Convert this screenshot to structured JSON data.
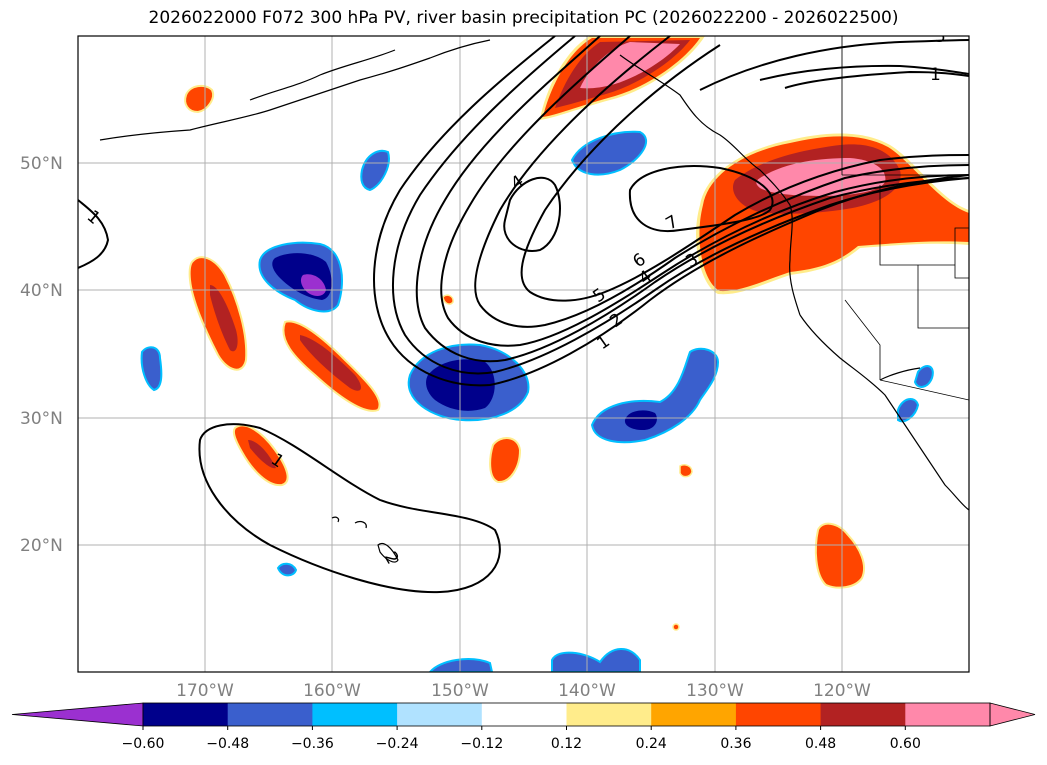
{
  "title": "2026022000 F072 300 hPa PV, river basin precipitation PC (2026022200 - 2026022500)",
  "map": {
    "lat_labels": [
      "50°N",
      "40°N",
      "30°N",
      "20°N"
    ],
    "lon_labels": [
      "170°W",
      "160°W",
      "150°W",
      "140°W",
      "130°W",
      "120°W"
    ],
    "contour_labels": [
      "1",
      "5",
      "4",
      "7",
      "6",
      "4",
      "3",
      "5",
      "2",
      "1",
      "1",
      "1",
      "2"
    ]
  },
  "colorbar": {
    "ticks": [
      "−0.60",
      "−0.48",
      "−0.36",
      "−0.24",
      "−0.12",
      "0.12",
      "0.24",
      "0.36",
      "0.48",
      "0.60"
    ],
    "colors": [
      "#9b30d0",
      "#00008b",
      "#3a5fcd",
      "#00bfff",
      "#b0e2ff",
      "#ffffff",
      "#ffec8b",
      "#ffa500",
      "#ff4500",
      "#b22222",
      "#ff88aa",
      "#ff88aa"
    ]
  },
  "colors": {
    "neg_strong": "#00008b",
    "neg_mid": "#3a5fcd",
    "neg_light": "#00bfff",
    "pos_light": "#ffec8b",
    "pos_mid": "#ff4500",
    "pos_strong": "#b22222",
    "pos_max": "#ff88aa",
    "purple": "#9b30d0"
  }
}
